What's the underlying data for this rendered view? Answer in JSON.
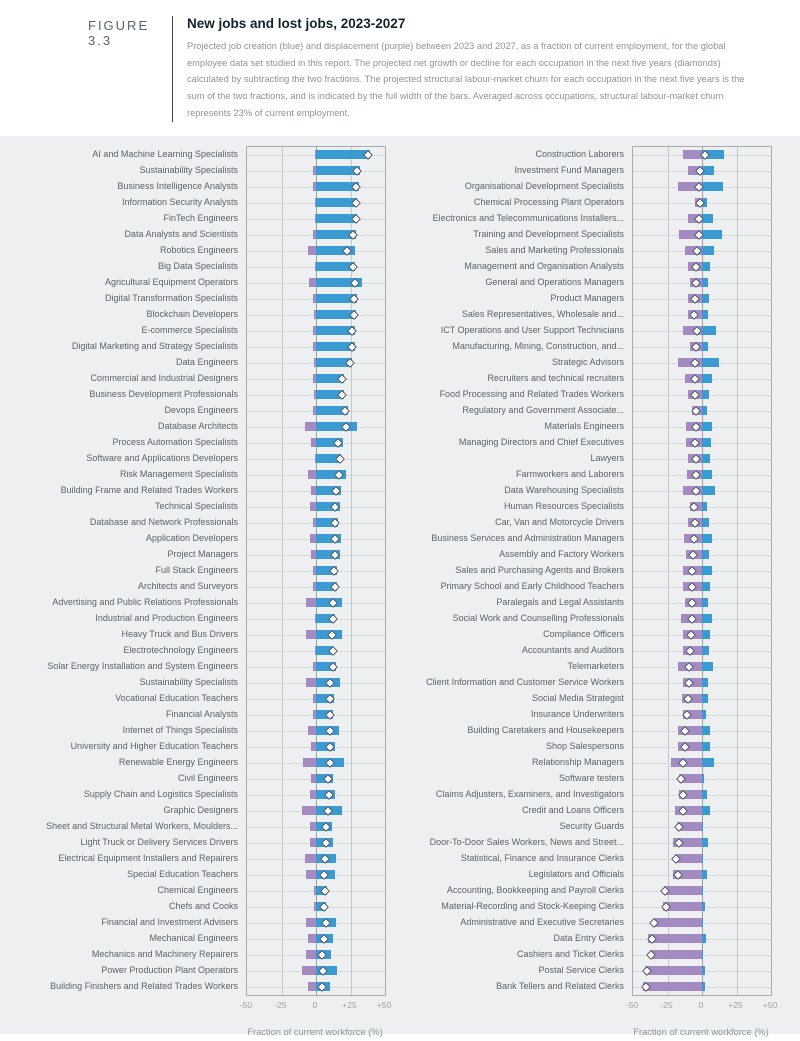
{
  "header": {
    "figure_label": "FIGURE 3.3",
    "title": "New jobs and lost jobs, 2023-2027",
    "description": "Projected job creation (blue) and displacement (purple) between 2023 and 2027, as a fraction of current employment, for the global employee data set studied in this report. The projected net growth or decline for each occupation in the next five years (diamonds) calculated by subtracting the two fractions. The projected structural labour-market churn for each occupation in the next five years is the sum of the two fractions, and is indicated by the full width of the bars. Averaged across occupations, structural labour-market churn represents 23% of current employment."
  },
  "colors": {
    "creation_blue": "#3A9BD3",
    "displacement_purple": "#A38AC1",
    "diamond_fill": "#FFFFFF",
    "diamond_border": "#535B62",
    "section_background": "#EDEFF1"
  },
  "chart_data": [
    {
      "type": "bar",
      "orientation": "horizontal",
      "panel": "new-jobs",
      "xlabel": "Fraction of current workforce (%)",
      "xlim": [
        -50,
        50
      ],
      "xticks": [
        "-50",
        "-25",
        "0",
        "+25",
        "+50"
      ],
      "legend": {
        "creation": "blue bar (job creation %)",
        "displacement": "purple bar (job displacement %)",
        "net": "diamond (net growth = creation - displacement)"
      },
      "rows": [
        {
          "label": "AI and Machine Learning Specialists",
          "creation": 39,
          "displacement": 1,
          "net": 38
        },
        {
          "label": "Sustainability Specialists",
          "creation": 32,
          "displacement": 2,
          "net": 30
        },
        {
          "label": "Business Intelligence Analysts",
          "creation": 31,
          "displacement": 2,
          "net": 29
        },
        {
          "label": "Information Security Analysts",
          "creation": 30,
          "displacement": 1,
          "net": 29
        },
        {
          "label": "FinTech Engineers",
          "creation": 30,
          "displacement": 1,
          "net": 29
        },
        {
          "label": "Data Analysts and Scientists",
          "creation": 29,
          "displacement": 2,
          "net": 27
        },
        {
          "label": "Robotics Engineers",
          "creation": 28,
          "displacement": 5.5,
          "net": 22.5
        },
        {
          "label": "Big Data Specialists",
          "creation": 28,
          "displacement": 1,
          "net": 27
        },
        {
          "label": "Agricultural Equipment Operators",
          "creation": 33.5,
          "displacement": 5,
          "net": 28.5
        },
        {
          "label": "Digital Transformation Specialists",
          "creation": 29.5,
          "displacement": 2,
          "net": 27.5
        },
        {
          "label": "Blockchain Developers",
          "creation": 29,
          "displacement": 1.5,
          "net": 27.5
        },
        {
          "label": "E-commerce Specialists",
          "creation": 28,
          "displacement": 2,
          "net": 26
        },
        {
          "label": "Digital Marketing and Strategy Specialists",
          "creation": 28,
          "displacement": 2,
          "net": 26
        },
        {
          "label": "Data Engineers",
          "creation": 26,
          "displacement": 1.5,
          "net": 24.5
        },
        {
          "label": "Commercial and Industrial Designers",
          "creation": 20.5,
          "displacement": 2,
          "net": 18.5
        },
        {
          "label": "Business Development Professionals",
          "creation": 20,
          "displacement": 1.5,
          "net": 18.5
        },
        {
          "label": "Devops Engineers",
          "creation": 23,
          "displacement": 2,
          "net": 21
        },
        {
          "label": "Database Architects",
          "creation": 29.5,
          "displacement": 8,
          "net": 21.5
        },
        {
          "label": "Process Automation Specialists",
          "creation": 19.5,
          "displacement": 3.5,
          "net": 16
        },
        {
          "label": "Software and Applications Developers",
          "creation": 18,
          "displacement": 0.5,
          "net": 17.5
        },
        {
          "label": "Risk Management Specialists",
          "creation": 22,
          "displacement": 5.5,
          "net": 16.5
        },
        {
          "label": "Building Frame and Related Trades Workers",
          "creation": 18,
          "displacement": 3.5,
          "net": 14.5
        },
        {
          "label": "Technical Specialists",
          "creation": 17.5,
          "displacement": 4,
          "net": 13.5
        },
        {
          "label": "Database and Network Professionals",
          "creation": 16,
          "displacement": 2,
          "net": 14
        },
        {
          "label": "Application Developers",
          "creation": 18,
          "displacement": 4,
          "net": 14
        },
        {
          "label": "Project Managers",
          "creation": 17.5,
          "displacement": 3.5,
          "net": 14
        },
        {
          "label": "Full Stack Engineers",
          "creation": 15.5,
          "displacement": 2.5,
          "net": 13
        },
        {
          "label": "Architects and Surveyors",
          "creation": 15.5,
          "displacement": 2,
          "net": 13.5
        },
        {
          "label": "Advertising and Public Relations Professionals",
          "creation": 19,
          "displacement": 7,
          "net": 12
        },
        {
          "label": "Industrial and Production Engineers",
          "creation": 13.5,
          "displacement": 1,
          "net": 12.5
        },
        {
          "label": "Heavy Truck and Bus Drivers",
          "creation": 19,
          "displacement": 7.5,
          "net": 11.5
        },
        {
          "label": "Electrotechnology Engineers",
          "creation": 12.5,
          "displacement": 0.5,
          "net": 12
        },
        {
          "label": "Solar Energy Installation and System Engineers",
          "creation": 14.5,
          "displacement": 2,
          "net": 12.5
        },
        {
          "label": "Sustainability Specialists",
          "creation": 17.5,
          "displacement": 7,
          "net": 10.5
        },
        {
          "label": "Vocational Education Teachers",
          "creation": 13,
          "displacement": 2.5,
          "net": 10.5
        },
        {
          "label": "Financial Analysts",
          "creation": 12.5,
          "displacement": 2,
          "net": 10.5
        },
        {
          "label": "Internet of Things Specialists",
          "creation": 16.5,
          "displacement": 6,
          "net": 10.5
        },
        {
          "label": "University and Higher Education Teachers",
          "creation": 13.5,
          "displacement": 3.5,
          "net": 10
        },
        {
          "label": "Renewable Energy Engineers",
          "creation": 20,
          "displacement": 9.5,
          "net": 10.5
        },
        {
          "label": "Civil Engineers",
          "creation": 12.5,
          "displacement": 3.5,
          "net": 9
        },
        {
          "label": "Supply Chain and Logistics Specialists",
          "creation": 14,
          "displacement": 4.5,
          "net": 9.5
        },
        {
          "label": "Graphic Designers",
          "creation": 19,
          "displacement": 10.5,
          "net": 8.5
        },
        {
          "label": "Sheet and Structural Metal Workers, Moulders...",
          "creation": 11.5,
          "displacement": 4.5,
          "net": 7
        },
        {
          "label": "Light Truck or Delivery Services Drivers",
          "creation": 12,
          "displacement": 4.5,
          "net": 7.5
        },
        {
          "label": "Electrical Equipment Installers and Repairers",
          "creation": 14.5,
          "displacement": 8,
          "net": 6.5
        },
        {
          "label": "Special Education Teachers",
          "creation": 13.5,
          "displacement": 7.5,
          "net": 6
        },
        {
          "label": "Chemical Engineers",
          "creation": 8,
          "displacement": 1.5,
          "net": 6.5
        },
        {
          "label": "Chefs and Cooks",
          "creation": 7,
          "displacement": 1.5,
          "net": 5.5
        },
        {
          "label": "Financial and Investment Advisers",
          "creation": 14.5,
          "displacement": 7.5,
          "net": 7
        },
        {
          "label": "Mechanical Engineers",
          "creation": 12,
          "displacement": 6,
          "net": 6
        },
        {
          "label": "Mechanics and Machinery Repairers",
          "creation": 11,
          "displacement": 7,
          "net": 4
        },
        {
          "label": "Power Production Plant Operators",
          "creation": 15,
          "displacement": 10,
          "net": 5
        },
        {
          "label": "Building Finishers and Related Trades Workers",
          "creation": 10,
          "displacement": 6,
          "net": 4
        }
      ]
    },
    {
      "type": "bar",
      "orientation": "horizontal",
      "panel": "lost-jobs",
      "xlabel": "Fraction of current workforce (%)",
      "xlim": [
        -50,
        50
      ],
      "xticks": [
        "-50",
        "-25",
        "0",
        "+25",
        "+50"
      ],
      "legend": {
        "creation": "blue bar (job creation %)",
        "displacement": "purple bar (job displacement %)",
        "net": "diamond (net growth = creation - displacement)"
      },
      "rows": [
        {
          "label": "Construction Laborers",
          "creation": 16,
          "displacement": 14,
          "net": 2
        },
        {
          "label": "Investment Fund Managers",
          "creation": 9,
          "displacement": 10.5,
          "net": -1.5
        },
        {
          "label": "Organisational Development Specialists",
          "creation": 15.5,
          "displacement": 17.5,
          "net": -2
        },
        {
          "label": "Chemical Processing Plant Operators",
          "creation": 3.5,
          "displacement": 5,
          "net": -1.5
        },
        {
          "label": "Electronics and Telecommunications Installers...",
          "creation": 8,
          "displacement": 10.5,
          "net": -2.5
        },
        {
          "label": "Training and Development Specialists",
          "creation": 14.5,
          "displacement": 17,
          "net": -2.5
        },
        {
          "label": "Sales and Marketing Professionals",
          "creation": 9,
          "displacement": 12.5,
          "net": -3.5
        },
        {
          "label": "Management and Organisation Analysts",
          "creation": 6,
          "displacement": 10.5,
          "net": -4.5
        },
        {
          "label": "General and Operations Managers",
          "creation": 4.5,
          "displacement": 8.5,
          "net": -4
        },
        {
          "label": "Product Managers",
          "creation": 5,
          "displacement": 10,
          "net": -5
        },
        {
          "label": "Sales Representatives, Wholesale and...",
          "creation": 4.5,
          "displacement": 10,
          "net": -5.5
        },
        {
          "label": "ICT Operations and User Support Technicians",
          "creation": 10.5,
          "displacement": 14,
          "net": -3.5
        },
        {
          "label": "Manufacturing, Mining, Construction, and...",
          "creation": 4,
          "displacement": 8.5,
          "net": -4.5
        },
        {
          "label": "Strategic Advisors",
          "creation": 12.5,
          "displacement": 17.5,
          "net": -5
        },
        {
          "label": "Recruiters and technical recruiters",
          "creation": 7,
          "displacement": 12,
          "net": -5
        },
        {
          "label": "Food Processing and Related Trades Workers",
          "creation": 5,
          "displacement": 10,
          "net": -5
        },
        {
          "label": "Regulatory and Government Associate...",
          "creation": 3.5,
          "displacement": 7.5,
          "net": -4
        },
        {
          "label": "Materials Engineers",
          "creation": 7.5,
          "displacement": 11.5,
          "net": -4
        },
        {
          "label": "Managing Directors and Chief Executives",
          "creation": 6.5,
          "displacement": 11.5,
          "net": -5
        },
        {
          "label": "Lawyers",
          "creation": 5.5,
          "displacement": 10,
          "net": -4.5
        },
        {
          "label": "Farmworkers and Laborers",
          "creation": 7,
          "displacement": 11,
          "net": -4
        },
        {
          "label": "Data Warehousing Specialists",
          "creation": 9.5,
          "displacement": 13.5,
          "net": -4
        },
        {
          "label": "Human Resources Specialists",
          "creation": 3.5,
          "displacement": 9,
          "net": -5.5
        },
        {
          "label": "Car, Van and Motorcycle Drivers",
          "creation": 5,
          "displacement": 10,
          "net": -5
        },
        {
          "label": "Business Services and Administration Managers",
          "creation": 7,
          "displacement": 13,
          "net": -6
        },
        {
          "label": "Assembly and Factory Workers",
          "creation": 5,
          "displacement": 11.5,
          "net": -6.5
        },
        {
          "label": "Sales and Purchasing Agents and Brokers",
          "creation": 7,
          "displacement": 14,
          "net": -7
        },
        {
          "label": "Primary School and Early Childhood Teachers",
          "creation": 6,
          "displacement": 13.5,
          "net": -7.5
        },
        {
          "label": "Paralegals and Legal Assistants",
          "creation": 4.5,
          "displacement": 12,
          "net": -7.5
        },
        {
          "label": "Social Work and Counselling Professionals",
          "creation": 7.5,
          "displacement": 15,
          "net": -7.5
        },
        {
          "label": "Compliance Officers",
          "creation": 5.5,
          "displacement": 13.5,
          "net": -8
        },
        {
          "label": "Accountants and Auditors",
          "creation": 5,
          "displacement": 13.5,
          "net": -8.5
        },
        {
          "label": "Telemarketers",
          "creation": 8,
          "displacement": 17.5,
          "net": -9.5
        },
        {
          "label": "Client Information and Customer Service Workers",
          "creation": 4.5,
          "displacement": 14,
          "net": -9.5
        },
        {
          "label": "Social Media Strategist",
          "creation": 4.5,
          "displacement": 14.5,
          "net": -10
        },
        {
          "label": "Insurance Underwriters",
          "creation": 3,
          "displacement": 14,
          "net": -11
        },
        {
          "label": "Building Caretakers and Housekeepers",
          "creation": 5.5,
          "displacement": 17.5,
          "net": -12
        },
        {
          "label": "Shop Salespersons",
          "creation": 5.5,
          "displacement": 17.5,
          "net": -12
        },
        {
          "label": "Relationship Managers",
          "creation": 8.5,
          "displacement": 22.5,
          "net": -14
        },
        {
          "label": "Software testers",
          "creation": 1.5,
          "displacement": 17,
          "net": -15.5
        },
        {
          "label": "Claims Adjusters, Examiners, and Investigators",
          "creation": 3.5,
          "displacement": 17,
          "net": -13.5
        },
        {
          "label": "Credit and Loans Officers",
          "creation": 5.5,
          "displacement": 19.5,
          "net": -14
        },
        {
          "label": "Security Guards",
          "creation": 1,
          "displacement": 18,
          "net": -17
        },
        {
          "label": "Door-To-Door Sales Workers, News and Street...",
          "creation": 4,
          "displacement": 21,
          "net": -17
        },
        {
          "label": "Statistical, Finance and Insurance Clerks",
          "creation": 1,
          "displacement": 19.5,
          "net": -18.5
        },
        {
          "label": "Legislators and Officials",
          "creation": 3.5,
          "displacement": 21,
          "net": -17.5
        },
        {
          "label": "Accounting, Bookkeeping and Payroll Clerks",
          "creation": 0.5,
          "displacement": 27.5,
          "net": -27
        },
        {
          "label": "Material-Recording and Stock-Keeping Clerks",
          "creation": 2,
          "displacement": 28,
          "net": -26
        },
        {
          "label": "Administrative and Executive Secretaries",
          "creation": 0.5,
          "displacement": 35,
          "net": -34.5
        },
        {
          "label": "Data Entry Clerks",
          "creation": 3,
          "displacement": 39,
          "net": -36
        },
        {
          "label": "Cashiers and Ticket Clerks",
          "creation": 0.5,
          "displacement": 37.5,
          "net": -37
        },
        {
          "label": "Postal Service Clerks",
          "creation": 2,
          "displacement": 41.5,
          "net": -39.5
        },
        {
          "label": "Bank Tellers and Related Clerks",
          "creation": 2.5,
          "displacement": 43,
          "net": -40.5
        }
      ]
    }
  ]
}
